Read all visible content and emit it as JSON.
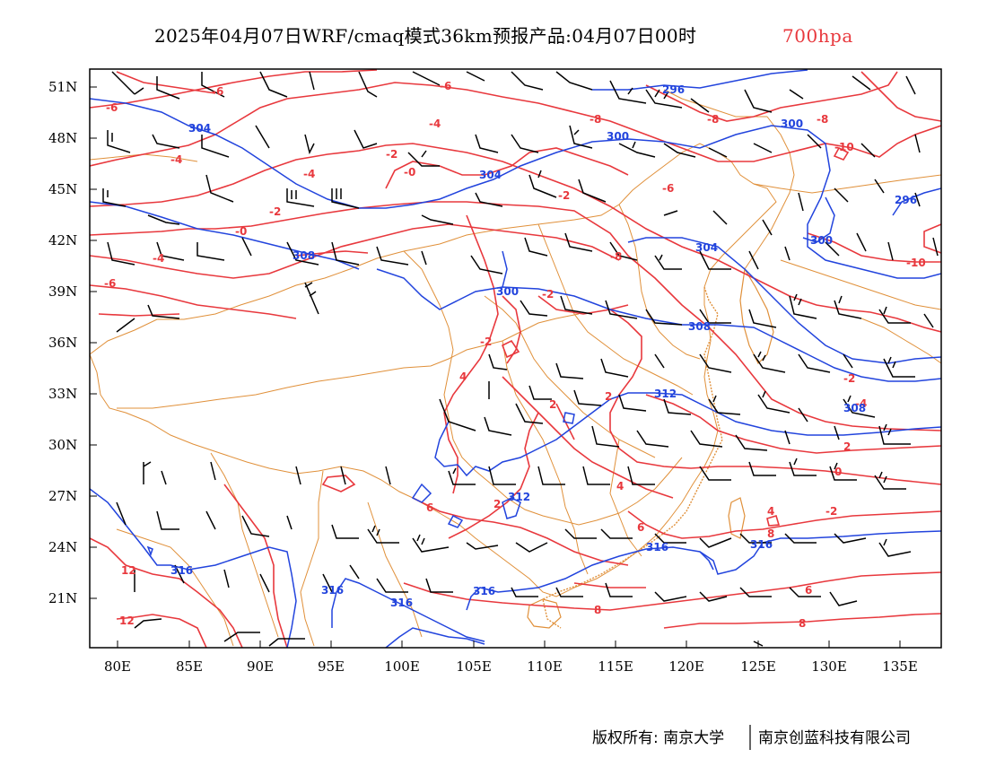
{
  "title": {
    "main": "2025年04月07日WRF/cmaq模式36km预报产品:04月07日00时",
    "level": "700hpa",
    "level_color": "#e8383d"
  },
  "axes": {
    "lat_ticks": [
      "51N",
      "48N",
      "45N",
      "42N",
      "39N",
      "36N",
      "33N",
      "30N",
      "27N",
      "24N",
      "21N"
    ],
    "lon_ticks": [
      "80E",
      "85E",
      "90E",
      "95E",
      "100E",
      "105E",
      "110E",
      "115E",
      "120E",
      "125E",
      "130E",
      "135E"
    ]
  },
  "credit": {
    "left": "版权所有: 南京大学",
    "right": "南京创蓝科技有限公司"
  },
  "colors": {
    "temperature": "#e8383d",
    "geopotential": "#2244dd",
    "border": "#e0903a",
    "wind": "#000000"
  },
  "temp_labels": [
    {
      "text": "-6"
    },
    {
      "text": "-6"
    },
    {
      "text": "-6"
    },
    {
      "text": "-4"
    },
    {
      "text": "-4"
    },
    {
      "text": "-4"
    },
    {
      "text": "-2"
    },
    {
      "text": "-2"
    },
    {
      "text": "-0"
    },
    {
      "text": "-0"
    },
    {
      "text": "-6"
    },
    {
      "text": "-8"
    },
    {
      "text": "-8"
    },
    {
      "text": "-8"
    },
    {
      "text": "-10"
    },
    {
      "text": "-10"
    },
    {
      "text": "-2"
    },
    {
      "text": "-2"
    },
    {
      "text": "-8"
    },
    {
      "text": "-4"
    },
    {
      "text": "-6"
    },
    {
      "text": "-2"
    },
    {
      "text": "2"
    },
    {
      "text": "4"
    },
    {
      "text": "2"
    },
    {
      "text": "2"
    },
    {
      "text": "-2"
    },
    {
      "text": "-4"
    },
    {
      "text": "-2"
    },
    {
      "text": "0"
    },
    {
      "text": "2"
    },
    {
      "text": "4"
    },
    {
      "text": "6"
    },
    {
      "text": "6"
    },
    {
      "text": "8"
    },
    {
      "text": "6"
    },
    {
      "text": "8"
    },
    {
      "text": "8"
    },
    {
      "text": "12"
    },
    {
      "text": "12"
    },
    {
      "text": "4"
    }
  ],
  "height_labels": [
    {
      "text": "296"
    },
    {
      "text": "300"
    },
    {
      "text": "300"
    },
    {
      "text": "304"
    },
    {
      "text": "304"
    },
    {
      "text": "296"
    },
    {
      "text": "300"
    },
    {
      "text": "304"
    },
    {
      "text": "308"
    },
    {
      "text": "300"
    },
    {
      "text": "308"
    },
    {
      "text": "312"
    },
    {
      "text": "308"
    },
    {
      "text": "312"
    },
    {
      "text": "316"
    },
    {
      "text": "316"
    },
    {
      "text": "316"
    },
    {
      "text": "316"
    },
    {
      "text": "316"
    },
    {
      "text": "316"
    }
  ]
}
